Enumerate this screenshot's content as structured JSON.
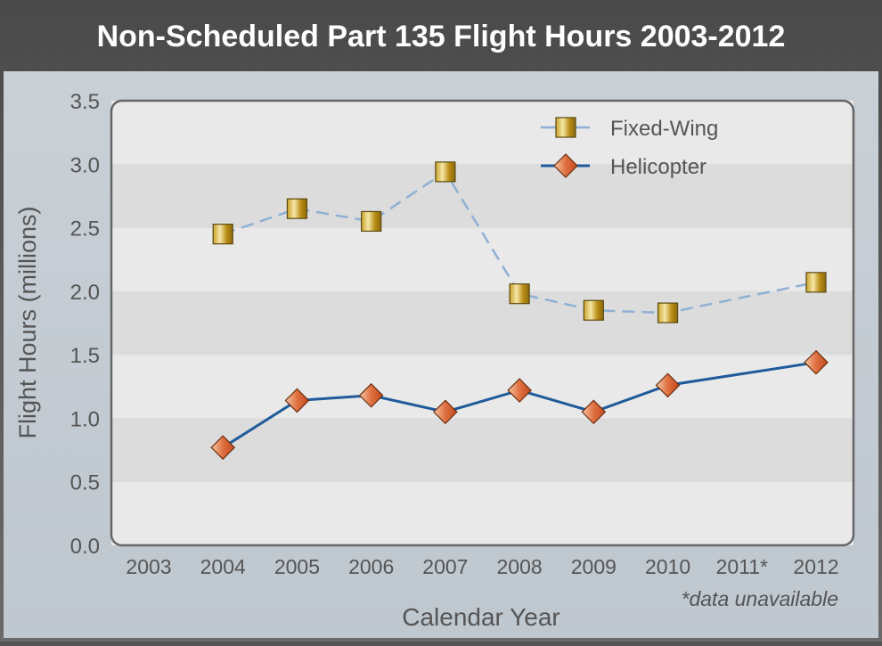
{
  "chart_data": {
    "type": "line",
    "title": "Non-Scheduled Part 135 Flight Hours 2003-2012",
    "xlabel": "Calendar Year",
    "ylabel": "Flight Hours (millions)",
    "categories": [
      "2003",
      "2004",
      "2005",
      "2006",
      "2007",
      "2008",
      "2009",
      "2010",
      "2011*",
      "2012"
    ],
    "ylim": [
      0,
      3.5
    ],
    "yticks": [
      "0.0",
      "0.5",
      "1.0",
      "1.5",
      "2.0",
      "2.5",
      "3.0",
      "3.5"
    ],
    "grid": "alternating horizontal bands",
    "legend_position": "top-right",
    "annotation": "*data unavailable",
    "series": [
      {
        "name": "Fixed-Wing",
        "color": "#8fb0d4",
        "dashed": true,
        "marker": "square",
        "values": [
          null,
          2.45,
          2.65,
          2.55,
          2.94,
          1.98,
          1.85,
          1.83,
          null,
          2.07
        ]
      },
      {
        "name": "Helicopter",
        "color": "#1f5a9a",
        "dashed": false,
        "marker": "diamond",
        "values": [
          null,
          0.77,
          1.14,
          1.18,
          1.05,
          1.22,
          1.05,
          1.26,
          null,
          1.44
        ]
      }
    ]
  }
}
